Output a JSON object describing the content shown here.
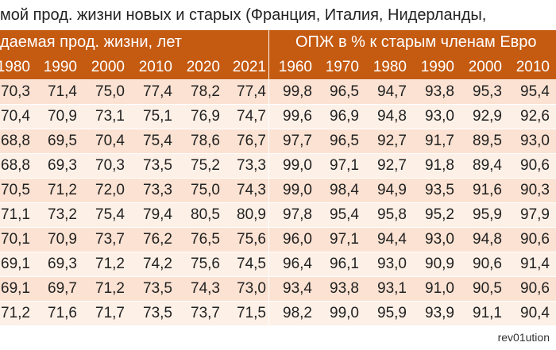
{
  "title": "мой прод. жизни новых и старых (Франция, Италия, Нидерланды,",
  "table": {
    "group_headers": [
      "даемая прод. жизни, лет",
      "ОПЖ в % к старым членам Евро"
    ],
    "years_left": [
      "1980",
      "1990",
      "2000",
      "2010",
      "2020",
      "2021"
    ],
    "years_right": [
      "1960",
      "1970",
      "1980",
      "1990",
      "2000",
      "2010"
    ],
    "rows": [
      [
        "70,3",
        "71,4",
        "75,0",
        "77,4",
        "78,2",
        "77,4",
        "99,8",
        "96,5",
        "94,7",
        "93,8",
        "95,3",
        "95,4"
      ],
      [
        "70,4",
        "70,9",
        "73,1",
        "75,1",
        "76,9",
        "74,7",
        "99,6",
        "96,9",
        "94,8",
        "93,0",
        "92,9",
        "92,6"
      ],
      [
        "68,8",
        "69,5",
        "70,4",
        "75,4",
        "78,6",
        "76,7",
        "97,7",
        "96,5",
        "92,7",
        "91,7",
        "89,5",
        "93,0"
      ],
      [
        "68,8",
        "69,3",
        "70,3",
        "73,5",
        "75,2",
        "73,3",
        "99,0",
        "97,1",
        "92,7",
        "91,8",
        "89,4",
        "90,6"
      ],
      [
        "70,5",
        "71,2",
        "72,0",
        "73,3",
        "75,0",
        "74,3",
        "99,0",
        "98,4",
        "94,9",
        "93,5",
        "91,6",
        "90,3"
      ],
      [
        "71,1",
        "73,2",
        "75,4",
        "79,4",
        "80,5",
        "80,9",
        "97,8",
        "95,4",
        "95,8",
        "95,2",
        "95,9",
        "97,9"
      ],
      [
        "70,1",
        "70,9",
        "73,7",
        "76,2",
        "76,5",
        "75,6",
        "96,0",
        "97,1",
        "94,4",
        "93,0",
        "94,8",
        "90,6"
      ],
      [
        "69,1",
        "69,3",
        "71,2",
        "74,2",
        "75,6",
        "74,5",
        "96,4",
        "96,1",
        "93,0",
        "90,9",
        "90,6",
        "91,4"
      ],
      [
        "69,1",
        "69,7",
        "71,2",
        "73,5",
        "74,3",
        "73,0",
        "93,4",
        "93,8",
        "93,1",
        "91,0",
        "90,5",
        "90,6"
      ],
      [
        "71,2",
        "71,6",
        "71,7",
        "73,5",
        "73,7",
        "71,5",
        "98,2",
        "99,0",
        "95,9",
        "93,9",
        "91,1",
        "90,4"
      ]
    ]
  },
  "footer": "rev01ution"
}
